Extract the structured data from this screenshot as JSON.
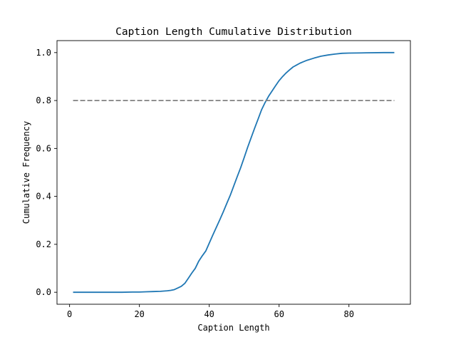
{
  "chart_data": {
    "type": "line",
    "title": "Caption Length Cumulative Distribution",
    "xlabel": "Caption Length",
    "ylabel": "Cumulative Frequency",
    "xlim": [
      -3.6,
      97.6
    ],
    "ylim": [
      -0.05,
      1.05
    ],
    "xticks": [
      0,
      20,
      40,
      60,
      80
    ],
    "yticks": [
      0.0,
      0.2,
      0.4,
      0.6,
      0.8,
      1.0
    ],
    "xtick_labels": [
      "0",
      "20",
      "40",
      "60",
      "80"
    ],
    "ytick_labels": [
      "0.0",
      "0.2",
      "0.4",
      "0.6",
      "0.8",
      "1.0"
    ],
    "grid": false,
    "legend": null,
    "series": [
      {
        "color": "#1f77b4",
        "style": "solid",
        "x": [
          1,
          5,
          10,
          15,
          18,
          20,
          22,
          24,
          26,
          28,
          29,
          30,
          31,
          32,
          33,
          34,
          35,
          36,
          37,
          38,
          39,
          40,
          41,
          42,
          43,
          44,
          45,
          46,
          47,
          48,
          49,
          50,
          51,
          52,
          53,
          54,
          55,
          56,
          57,
          58,
          59,
          60,
          61,
          62,
          63,
          64,
          65,
          66,
          67,
          68,
          70,
          72,
          74,
          76,
          78,
          80,
          85,
          90,
          93
        ],
        "y": [
          0.0,
          0.0,
          0.0,
          0.0,
          0.001,
          0.001,
          0.002,
          0.003,
          0.004,
          0.006,
          0.008,
          0.011,
          0.018,
          0.025,
          0.037,
          0.058,
          0.08,
          0.1,
          0.13,
          0.152,
          0.172,
          0.205,
          0.238,
          0.27,
          0.302,
          0.335,
          0.37,
          0.404,
          0.443,
          0.482,
          0.52,
          0.562,
          0.605,
          0.645,
          0.685,
          0.723,
          0.762,
          0.792,
          0.818,
          0.84,
          0.862,
          0.883,
          0.9,
          0.915,
          0.928,
          0.94,
          0.948,
          0.956,
          0.962,
          0.968,
          0.977,
          0.985,
          0.99,
          0.994,
          0.997,
          0.998,
          0.999,
          1.0,
          1.0
        ]
      },
      {
        "color": "#808080",
        "style": "dashed",
        "x": [
          1,
          93
        ],
        "y": [
          0.8,
          0.8
        ]
      }
    ]
  }
}
